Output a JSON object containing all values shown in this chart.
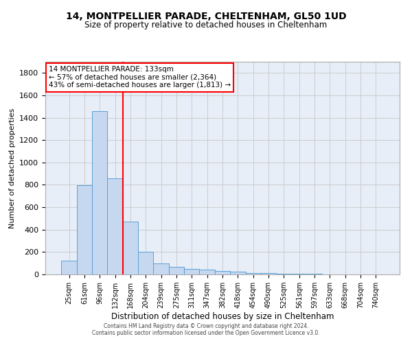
{
  "title": "14, MONTPELLIER PARADE, CHELTENHAM, GL50 1UD",
  "subtitle": "Size of property relative to detached houses in Cheltenham",
  "xlabel": "Distribution of detached houses by size in Cheltenham",
  "ylabel": "Number of detached properties",
  "categories": [
    "25sqm",
    "61sqm",
    "96sqm",
    "132sqm",
    "168sqm",
    "204sqm",
    "239sqm",
    "275sqm",
    "311sqm",
    "347sqm",
    "382sqm",
    "418sqm",
    "454sqm",
    "490sqm",
    "525sqm",
    "561sqm",
    "597sqm",
    "633sqm",
    "668sqm",
    "704sqm",
    "740sqm"
  ],
  "values": [
    120,
    795,
    1460,
    860,
    470,
    200,
    100,
    65,
    50,
    40,
    30,
    22,
    15,
    10,
    8,
    5,
    4,
    3,
    2,
    2,
    2
  ],
  "bar_color": "#c5d8f0",
  "bar_edge_color": "#5a9fd4",
  "red_line_index": 3,
  "annotation_text": "14 MONTPELLIER PARADE: 133sqm\n← 57% of detached houses are smaller (2,364)\n43% of semi-detached houses are larger (1,813) →",
  "annotation_box_color": "white",
  "annotation_box_edge_color": "red",
  "red_line_color": "red",
  "ylim": [
    0,
    1900
  ],
  "yticks": [
    0,
    200,
    400,
    600,
    800,
    1000,
    1200,
    1400,
    1600,
    1800
  ],
  "grid_color": "#cccccc",
  "background_color": "#e8eef8",
  "footer_line1": "Contains HM Land Registry data © Crown copyright and database right 2024.",
  "footer_line2": "Contains public sector information licensed under the Open Government Licence v3.0."
}
